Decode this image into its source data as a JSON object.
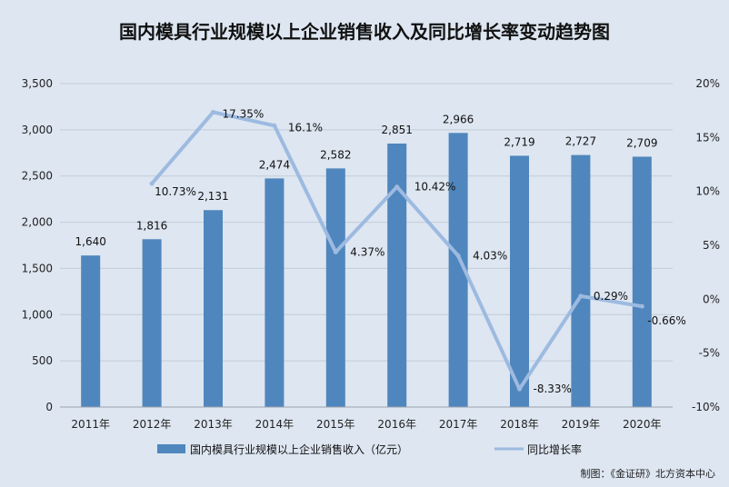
{
  "chart_data": {
    "type": "bar",
    "title": "国内模具行业规模以上企业销售收入及同比增长率变动趋势图",
    "categories": [
      "2011年",
      "2012年",
      "2013年",
      "2014年",
      "2015年",
      "2016年",
      "2017年",
      "2018年",
      "2019年",
      "2020年"
    ],
    "series": [
      {
        "name": "国内模具行业规模以上企业销售收入（亿元）",
        "type": "bar",
        "axis": "left",
        "values": [
          1640,
          1816,
          2131,
          2474,
          2582,
          2851,
          2966,
          2719,
          2727,
          2709
        ],
        "labels": [
          "1,640",
          "1,816",
          "2,131",
          "2,474",
          "2,582",
          "2,851",
          "2,966",
          "2,719",
          "2,727",
          "2,709"
        ],
        "color": "#4f86bd"
      },
      {
        "name": "同比增长率",
        "type": "line",
        "axis": "right",
        "values": [
          null,
          10.73,
          17.35,
          16.1,
          4.37,
          10.42,
          4.03,
          -8.33,
          0.29,
          -0.66
        ],
        "labels": [
          "",
          "10.73%",
          "17.35%",
          "16.1%",
          "4.37%",
          "10.42%",
          "4.03%",
          "-8.33%",
          "0.29%",
          "-0.66%"
        ],
        "color": "#9dbae0"
      }
    ],
    "y_left": {
      "range": [
        0,
        3500
      ],
      "ticks": [
        0,
        500,
        1000,
        1500,
        2000,
        2500,
        3000,
        3500
      ],
      "tick_labels": [
        "0",
        "500",
        "1,000",
        "1,500",
        "2,000",
        "2,500",
        "3,000",
        "3,500"
      ]
    },
    "y_right": {
      "range": [
        -10,
        20
      ],
      "ticks": [
        -10,
        -5,
        0,
        5,
        10,
        15,
        20
      ],
      "tick_labels": [
        "-10%",
        "-5%",
        "0%",
        "5%",
        "10%",
        "15%",
        "20%"
      ]
    },
    "grid": true,
    "legend_position": "bottom",
    "credit": "制图：《金证研》北方资本中心",
    "colors": {
      "background": "#dde6f1",
      "grid": "#c3ccd7"
    }
  }
}
